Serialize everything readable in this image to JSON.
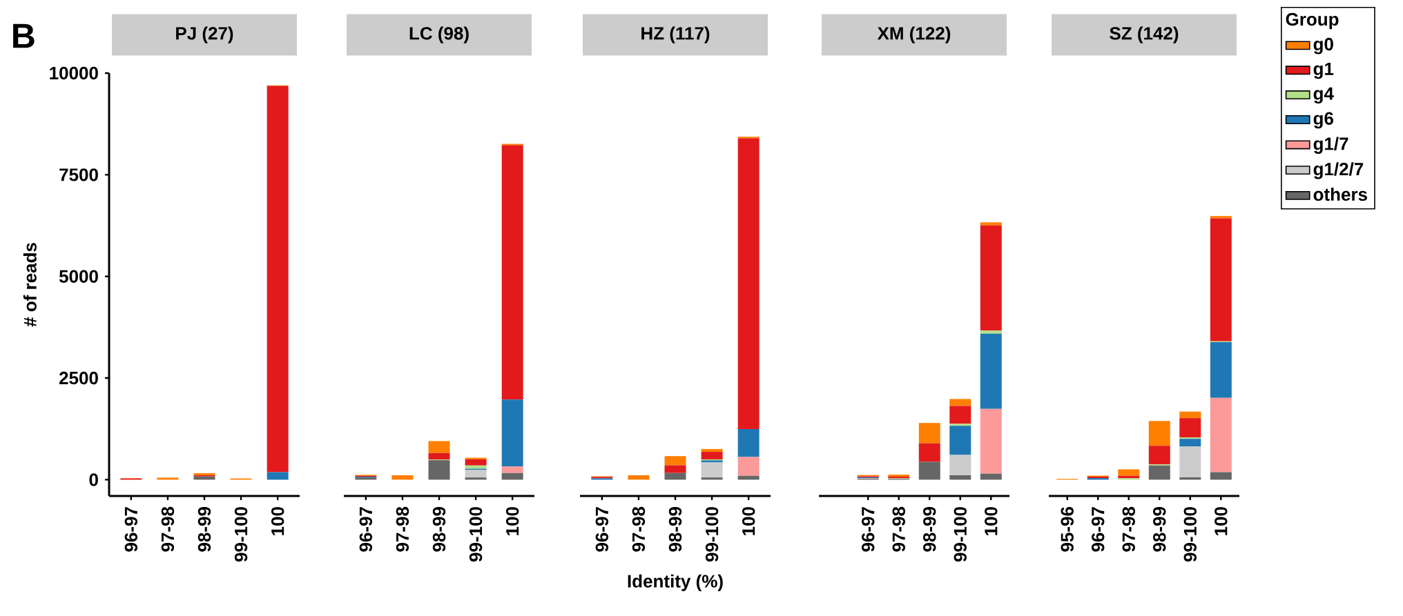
{
  "chart_data": [
    {
      "type": "bar",
      "stacked": true,
      "title": "PJ (27)",
      "ylabel": "# of reads",
      "annotations": [
        "B"
      ],
      "categories": [
        "96-97",
        "97-98",
        "98-99",
        "99-100",
        "100"
      ],
      "ylim": [
        -400,
        10000
      ],
      "yticks": [
        0,
        2500,
        5000,
        7500,
        10000
      ],
      "series": [
        {
          "color": "#666666",
          "values": [
            0,
            0,
            80,
            null,
            0
          ]
        },
        {
          "color": "#cccccc",
          "values": [
            0,
            0,
            0,
            0,
            0
          ]
        },
        {
          "color": "#fb9a99",
          "values": [
            0,
            0,
            0,
            0,
            0
          ]
        },
        {
          "color": "#1f78b4",
          "values": [
            0,
            0,
            0,
            0,
            185
          ]
        },
        {
          "color": "#b2df8a",
          "values": [
            0,
            0,
            0,
            0,
            0
          ]
        },
        {
          "color": "#e31a1c",
          "values": [
            30,
            0,
            30,
            0,
            9500
          ]
        },
        {
          "color": "#ff7f00",
          "values": [
            10,
            50,
            50,
            30,
            15
          ]
        }
      ]
    },
    {
      "type": "bar",
      "stacked": true,
      "title": "LC (98)",
      "tick_labels": "x",
      "categories": [
        "96-97",
        "97-98",
        "98-99",
        "99-100",
        "100"
      ],
      "ylim": [
        -400,
        10000
      ],
      "yticks": [
        0,
        2500,
        5000,
        7500,
        10000
      ],
      "series": [
        {
          "color": "#666666",
          "values": [
            55,
            0,
            480,
            55,
            165
          ]
        },
        {
          "color": "#cccccc",
          "values": [
            0,
            0,
            0,
            190,
            0
          ]
        },
        {
          "color": "#fb9a99",
          "values": [
            0,
            0,
            0,
            0,
            160
          ]
        },
        {
          "color": "#1f78b4",
          "values": [
            20,
            0,
            0,
            25,
            1645
          ]
        },
        {
          "color": "#b2df8a",
          "values": [
            0,
            0,
            15,
            80,
            0
          ]
        },
        {
          "color": "#e31a1c",
          "values": [
            20,
            0,
            160,
            150,
            6255
          ]
        },
        {
          "color": "#ff7f00",
          "values": [
            25,
            110,
            295,
            40,
            35
          ]
        }
      ]
    },
    {
      "type": "bar",
      "stacked": true,
      "title": "HZ (117)",
      "xlabel": "Identity (%)",
      "tick_labels": "x",
      "categories": [
        "96-97",
        "97-98",
        "98-99",
        "99-100",
        "100"
      ],
      "ylim": [
        -400,
        10000
      ],
      "yticks": [
        0,
        2500,
        5000,
        7500,
        10000
      ],
      "series": [
        {
          "color": "#666666",
          "values": [
            0,
            0,
            165,
            55,
            95
          ]
        },
        {
          "color": "#cccccc",
          "values": [
            0,
            0,
            0,
            370,
            0
          ]
        },
        {
          "color": "#fb9a99",
          "values": [
            0,
            0,
            0,
            0,
            465
          ]
        },
        {
          "color": "#1f78b4",
          "values": [
            35,
            0,
            0,
            50,
            685
          ]
        },
        {
          "color": "#b2df8a",
          "values": [
            0,
            null,
            0,
            25,
            0
          ]
        },
        {
          "color": "#e31a1c",
          "values": [
            35,
            0,
            190,
            185,
            7150
          ]
        },
        {
          "color": "#ff7f00",
          "values": [
            15,
            110,
            225,
            70,
            40
          ]
        }
      ]
    },
    {
      "type": "bar",
      "stacked": true,
      "title": "XM (122)",
      "tick_labels": "x",
      "categories": [
        null,
        "96-97",
        "97-98",
        "98-99",
        "99-100",
        "100"
      ],
      "ylim": [
        -400,
        10000
      ],
      "yticks": [
        0,
        2500,
        5000,
        7500,
        10000
      ],
      "series": [
        {
          "color": "#666666",
          "values": [
            null,
            20,
            20,
            440,
            110,
            150
          ]
        },
        {
          "color": "#cccccc",
          "values": [
            null,
            0,
            0,
            0,
            500,
            0
          ]
        },
        {
          "color": "#fb9a99",
          "values": [
            null,
            15,
            0,
            0,
            0,
            1590
          ]
        },
        {
          "color": "#1f78b4",
          "values": [
            null,
            25,
            0,
            0,
            715,
            1850
          ]
        },
        {
          "color": "#b2df8a",
          "values": [
            null,
            0,
            15,
            0,
            50,
            80
          ]
        },
        {
          "color": "#e31a1c",
          "values": [
            null,
            25,
            40,
            455,
            440,
            2585
          ]
        },
        {
          "color": "#ff7f00",
          "values": [
            null,
            30,
            50,
            500,
            170,
            75
          ]
        }
      ]
    },
    {
      "type": "bar",
      "stacked": true,
      "title": "SZ (142)",
      "tick_labels": "x",
      "legend": "right",
      "legend_title": "Group",
      "categories": [
        "95-96",
        "96-97",
        "97-98",
        "98-99",
        "99-100",
        "100"
      ],
      "ylim": [
        -400,
        10000
      ],
      "yticks": [
        0,
        2500,
        5000,
        7500,
        10000
      ],
      "series": [
        {
          "name": "others",
          "color": "#666666",
          "values": [
            0,
            0,
            0,
            350,
            60,
            185
          ]
        },
        {
          "name": "g1/2/7",
          "color": "#cccccc",
          "values": [
            0,
            0,
            0,
            0,
            755,
            0
          ]
        },
        {
          "name": "g1/7",
          "color": "#fb9a99",
          "values": [
            0,
            0,
            0,
            0,
            0,
            1830
          ]
        },
        {
          "name": "g6",
          "color": "#1f78b4",
          "values": [
            0,
            40,
            0,
            0,
            190,
            1370
          ]
        },
        {
          "name": "g4",
          "color": "#b2df8a",
          "values": [
            0,
            0,
            35,
            25,
            35,
            20
          ]
        },
        {
          "name": "g1",
          "color": "#e31a1c",
          "values": [
            0,
            35,
            60,
            460,
            475,
            3025
          ]
        },
        {
          "name": "g0",
          "color": "#ff7f00",
          "values": [
            20,
            25,
            160,
            610,
            160,
            55
          ]
        }
      ]
    }
  ]
}
